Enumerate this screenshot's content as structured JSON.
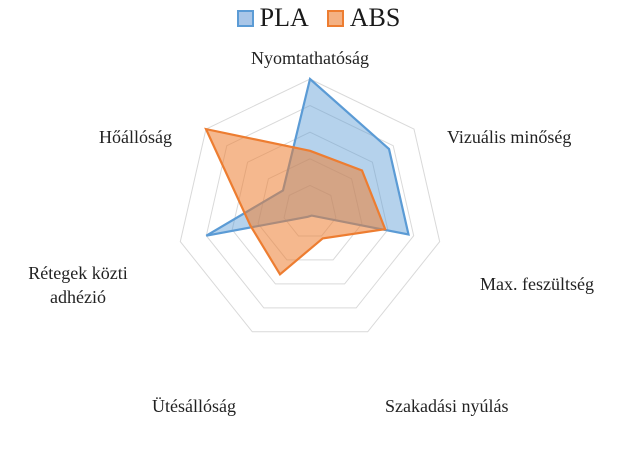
{
  "chart_data": {
    "type": "radar",
    "axes": [
      "Nyomtathatóság",
      "Vizuális minőség",
      "Max. feszültség",
      "Szakadási nyúlás",
      "Ütésállóság",
      "Rétegek közti adhézió",
      "Hőállóság"
    ],
    "range": [
      0,
      5
    ],
    "grid_levels": 5,
    "grid": true,
    "legend_position": "top",
    "series": [
      {
        "name": "PLA",
        "values": [
          5,
          3.8,
          3.8,
          0.15,
          0.2,
          4,
          1.3
        ],
        "stroke": "#5b9bd5",
        "fill": "#5b9bd5",
        "fill_opacity": 0.45
      },
      {
        "name": "ABS",
        "values": [
          2.3,
          2.5,
          2.9,
          1.1,
          2.6,
          2.3,
          5
        ],
        "stroke": "#ed7d31",
        "fill": "#ed7d31",
        "fill_opacity": 0.55
      }
    ]
  },
  "legend": {
    "items": [
      {
        "label": "PLA",
        "fill": "#a9c6e8",
        "stroke": "#5b9bd5"
      },
      {
        "label": "ABS",
        "fill": "#f4b183",
        "stroke": "#ed7d31"
      }
    ]
  },
  "labels": {
    "nyomtathatosag": "Nyomtathatóság",
    "vizualis": "Vizuális minőség",
    "max_fesz": "Max. feszültség",
    "szakadasi": "Szakadási nyúlás",
    "utesallosag": "Ütésállóság",
    "retegek_1": "Rétegek közti",
    "retegek_2": "adhézió",
    "hoallosag": "Hőállóság"
  }
}
